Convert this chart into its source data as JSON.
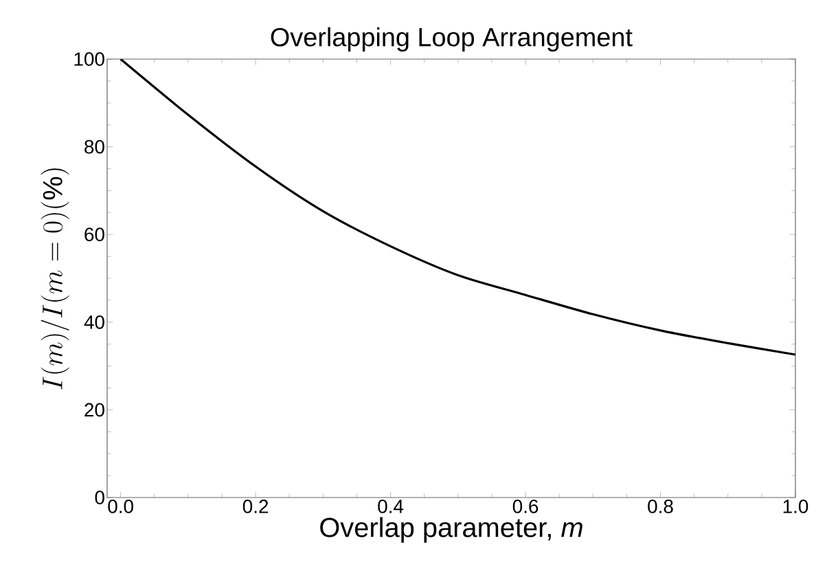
{
  "chart_data": {
    "type": "line",
    "title": "Overlapping Loop Arrangement",
    "xlabel": "Overlap parameter, *m*",
    "ylabel": "I(m)/I(m=0)(\\%)",
    "x": [
      0,
      0.1,
      0.2,
      0.3,
      0.4,
      0.5,
      0.6,
      0.7,
      0.8,
      0.9,
      1.0
    ],
    "series": [
      {
        "color": "#000000",
        "values": [
          100,
          87.3,
          75.5,
          65.3,
          57.3,
          50.7,
          46.2,
          41.8,
          38.1,
          35.2,
          32.6
        ]
      }
    ],
    "xlim": [
      -0.02,
      1.0
    ],
    "ylim": [
      0,
      100
    ],
    "xticks": [
      {
        "value": 0,
        "label": "0.0"
      },
      {
        "value": 0.2,
        "label": "0.2"
      },
      {
        "value": 0.4,
        "label": "0.4"
      },
      {
        "value": 0.6,
        "label": "0.6"
      },
      {
        "value": 0.8,
        "label": "0.8"
      },
      {
        "value": 1.0,
        "label": "1.0"
      }
    ],
    "yticks": [
      0,
      20,
      40,
      60,
      80,
      100
    ],
    "grid": false,
    "marker": "none",
    "line_style": "solid"
  }
}
